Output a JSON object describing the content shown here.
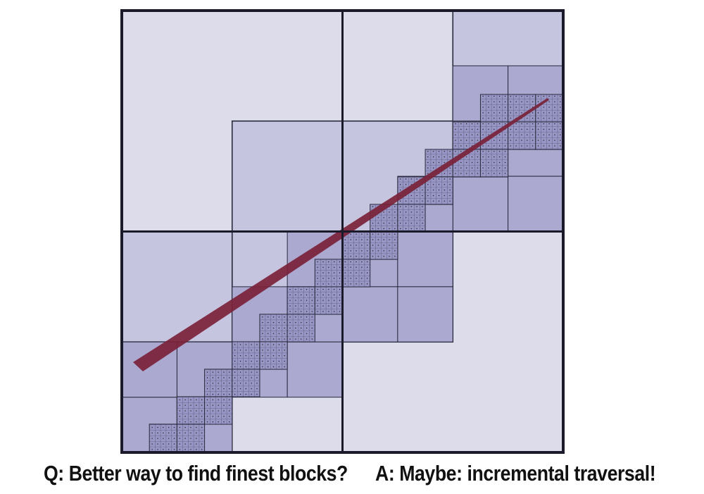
{
  "diagram": {
    "kind": "adaptive grid hierarchy with ray traversal",
    "grid_levels": 4,
    "colors": {
      "level0": "#dcdcea",
      "level1": "#c6c5df",
      "level2": "#aba9d0",
      "level3": "#9896c4",
      "ray": "#7a2238",
      "grid_border": "#1a1a2a"
    }
  },
  "caption": {
    "question": "Q: Better way to find finest blocks?",
    "answer": "A: Maybe: incremental traversal!"
  }
}
